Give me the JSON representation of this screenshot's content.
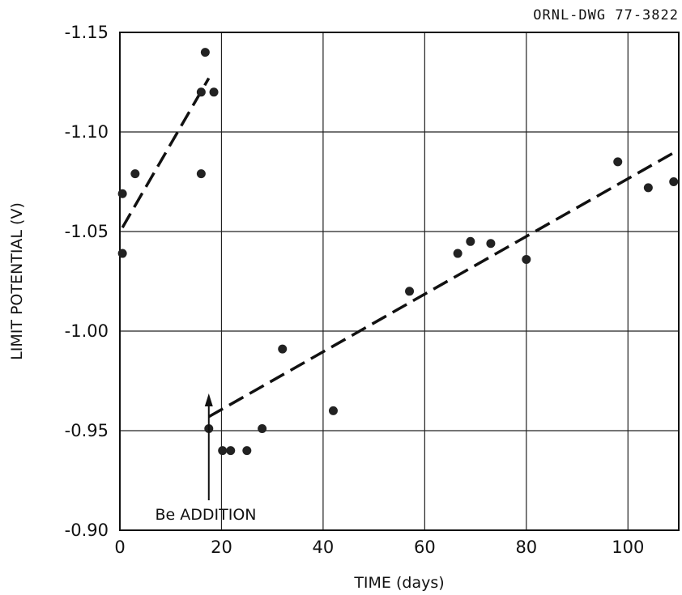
{
  "chart_data": {
    "type": "scatter",
    "drawing_id": "ORNL-DWG 77-3822",
    "xlabel": "TIME (days)",
    "ylabel": "LIMIT POTENTIAL (V)",
    "xlim": [
      0,
      110
    ],
    "ylim": [
      -0.9,
      -1.15
    ],
    "y_axis_inverted": true,
    "grid": true,
    "x_ticks": [
      {
        "value": 0,
        "label": "0"
      },
      {
        "value": 20,
        "label": "20"
      },
      {
        "value": 40,
        "label": "40"
      },
      {
        "value": 60,
        "label": "60"
      },
      {
        "value": 80,
        "label": "80"
      },
      {
        "value": 100,
        "label": "100"
      }
    ],
    "y_ticks": [
      {
        "value": -0.9,
        "label": "-0.90"
      },
      {
        "value": -0.95,
        "label": "-0.95"
      },
      {
        "value": -1.0,
        "label": "-1.00"
      },
      {
        "value": -1.05,
        "label": "-1.05"
      },
      {
        "value": -1.1,
        "label": "-1.10"
      },
      {
        "value": -1.15,
        "label": "-1.15"
      }
    ],
    "points": [
      {
        "x": 0.5,
        "y": -1.069
      },
      {
        "x": 0.5,
        "y": -1.039
      },
      {
        "x": 3.0,
        "y": -1.079
      },
      {
        "x": 16.0,
        "y": -1.079
      },
      {
        "x": 16.0,
        "y": -1.12
      },
      {
        "x": 16.8,
        "y": -1.14
      },
      {
        "x": 17.5,
        "y": -0.951
      },
      {
        "x": 18.5,
        "y": -1.12
      },
      {
        "x": 20.2,
        "y": -0.94
      },
      {
        "x": 21.8,
        "y": -0.94
      },
      {
        "x": 25.0,
        "y": -0.94
      },
      {
        "x": 28.0,
        "y": -0.951
      },
      {
        "x": 32.0,
        "y": -0.991
      },
      {
        "x": 42.0,
        "y": -0.96
      },
      {
        "x": 57.0,
        "y": -1.02
      },
      {
        "x": 66.5,
        "y": -1.039
      },
      {
        "x": 69.0,
        "y": -1.045
      },
      {
        "x": 73.0,
        "y": -1.044
      },
      {
        "x": 80.0,
        "y": -1.036
      },
      {
        "x": 98.0,
        "y": -1.085
      },
      {
        "x": 104.0,
        "y": -1.072
      },
      {
        "x": 109.0,
        "y": -1.075
      }
    ],
    "fit_lines": [
      {
        "style": "dashed",
        "from": {
          "x": 0.5,
          "y": -1.052
        },
        "to": {
          "x": 17.5,
          "y": -1.127
        }
      },
      {
        "style": "dashed",
        "from": {
          "x": 17.5,
          "y": -0.957
        },
        "to": {
          "x": 110,
          "y": -1.091
        }
      }
    ],
    "annotations": [
      {
        "text": "Be ADDITION",
        "arrow_x": 17.5
      }
    ]
  }
}
